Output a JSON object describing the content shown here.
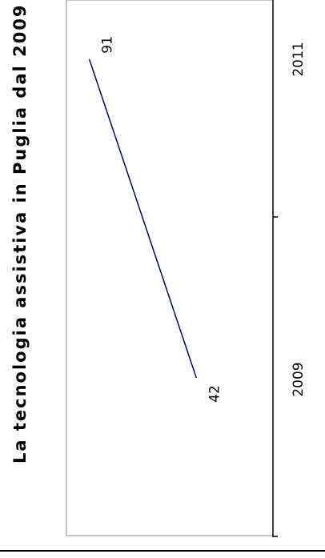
{
  "chart_data": {
    "type": "line",
    "title": "La tecnologia assistiva in Puglia dal 2009",
    "categories": [
      "2009",
      "2011"
    ],
    "series": [
      {
        "values": [
          42,
          91
        ],
        "color": "#000080"
      }
    ],
    "data_labels": [
      "42",
      "91"
    ],
    "xlabel": "",
    "ylabel": "",
    "grid": false,
    "legend": "none",
    "orientation": "rotated-90-clockwise"
  }
}
